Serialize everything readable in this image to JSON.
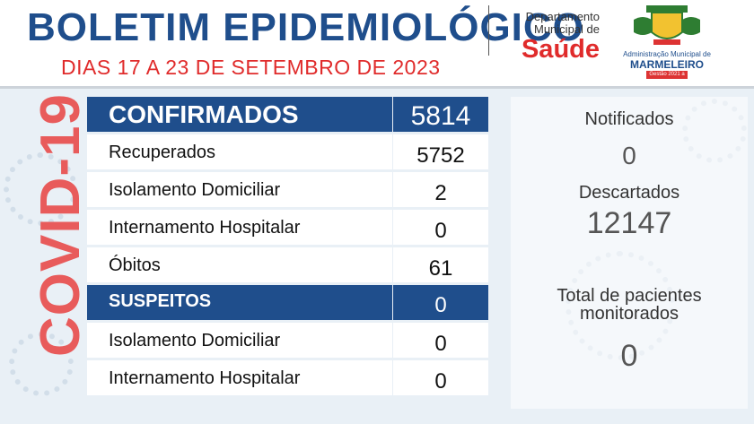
{
  "header": {
    "title": "BOLETIM EPIDEMIOLÓGICO",
    "subtitle": "DIAS 17 A 23 DE SETEMBRO DE 2023",
    "dept_line1": "Departamento",
    "dept_line2": "Municipal de",
    "dept_saude": "Saúde",
    "logo_line1": "Administração Municipal de",
    "logo_line2": "MARMELEIRO",
    "logo_line3": "Gestão 2021 a 2024"
  },
  "side_label": "COVID-19",
  "table": {
    "confirmados": {
      "label": "CONFIRMADOS",
      "value": "5814"
    },
    "recuperados": {
      "label": "Recuperados",
      "value": "5752"
    },
    "isolamento": {
      "label": "Isolamento Domiciliar",
      "value": "2"
    },
    "internamento": {
      "label": "Internamento Hospitalar",
      "value": "0"
    },
    "obitos": {
      "label": "Óbitos",
      "value": "61"
    },
    "suspeitos": {
      "label": "SUSPEITOS",
      "value": "0"
    },
    "susp_isolamento": {
      "label": "Isolamento Domiciliar",
      "value": "0"
    },
    "susp_internamento": {
      "label": "Internamento Hospitalar",
      "value": "0"
    }
  },
  "right_panel": {
    "notificados": {
      "label": "Notificados",
      "value": "0"
    },
    "descartados": {
      "label": "Descartados",
      "value": "12147"
    },
    "monitorados": {
      "label_line1": "Total de pacientes",
      "label_line2": "monitorados",
      "value": "0"
    }
  },
  "colors": {
    "primary": "#1f4e8c",
    "accent": "#e02b2b",
    "covid": "#e85b5b"
  }
}
